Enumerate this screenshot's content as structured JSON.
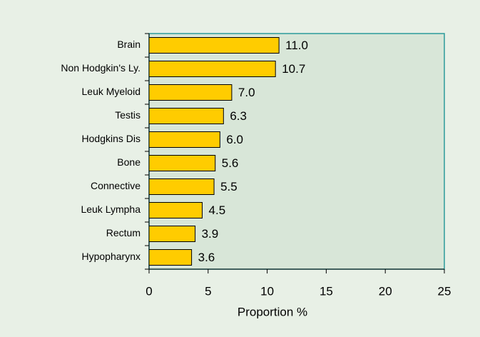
{
  "chart_data": {
    "type": "bar",
    "orientation": "horizontal",
    "categories": [
      "Brain",
      "Non Hodgkin's Ly.",
      "Leuk Myeloid",
      "Testis",
      "Hodgkins Dis",
      "Bone",
      "Connective",
      "Leuk Lympha",
      "Rectum",
      "Hypopharynx"
    ],
    "values": [
      11.0,
      10.7,
      7.0,
      6.3,
      6.0,
      5.6,
      5.5,
      4.5,
      3.9,
      3.6
    ],
    "value_labels": [
      "11.0",
      "10.7",
      "7.0",
      "6.3",
      "6.0",
      "5.6",
      "5.5",
      "4.5",
      "3.9",
      "3.6"
    ],
    "color": "#ffcc00",
    "xlabel": "Proportion  %",
    "xlim": [
      0,
      25
    ],
    "xticks": [
      0,
      5,
      10,
      15,
      20,
      25
    ],
    "grid": false
  }
}
